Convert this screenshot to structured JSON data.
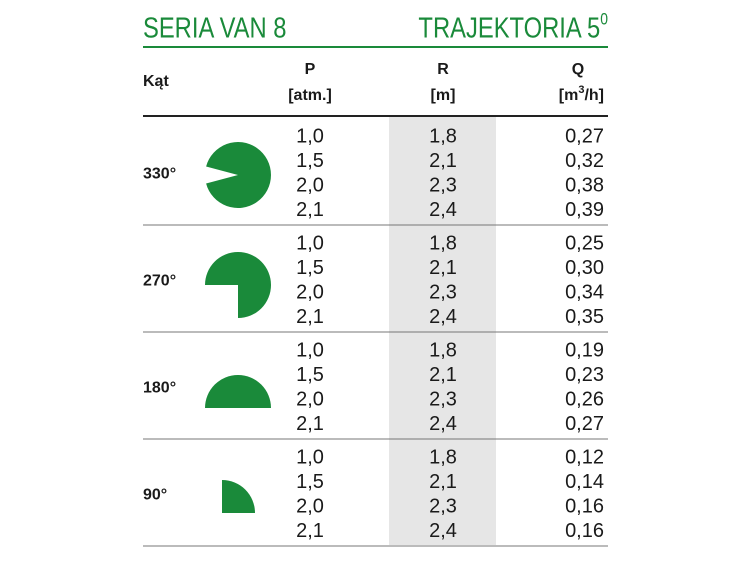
{
  "header": {
    "title_left": "SERIA VAN 8",
    "title_right": {
      "text": "TRAJEKTORIA 5",
      "sup": "0"
    }
  },
  "table": {
    "columns": [
      {
        "name": "Kąt"
      },
      {
        "name": "P",
        "unit": [
          "[atm.]"
        ]
      },
      {
        "name": "R",
        "unit": [
          "[m]"
        ]
      },
      {
        "name": "Q",
        "unit": [
          "[m",
          "3",
          "/h]"
        ]
      }
    ],
    "groups": [
      {
        "angle": "330°",
        "rows": [
          [
            "1,0",
            "1,8",
            "0,27"
          ],
          [
            "1,5",
            "2,1",
            "0,32"
          ],
          [
            "2,0",
            "2,3",
            "0,38"
          ],
          [
            "2,1",
            "2,4",
            "0,39"
          ]
        ]
      },
      {
        "angle": "270°",
        "rows": [
          [
            "1,0",
            "1,8",
            "0,25"
          ],
          [
            "1,5",
            "2,1",
            "0,30"
          ],
          [
            "2,0",
            "2,3",
            "0,34"
          ],
          [
            "2,1",
            "2,4",
            "0,35"
          ]
        ]
      },
      {
        "angle": "180°",
        "rows": [
          [
            "1,0",
            "1,8",
            "0,19"
          ],
          [
            "1,5",
            "2,1",
            "0,23"
          ],
          [
            "2,0",
            "2,3",
            "0,26"
          ],
          [
            "2,1",
            "2,4",
            "0,27"
          ]
        ]
      },
      {
        "angle": "90°",
        "rows": [
          [
            "1,0",
            "1,8",
            "0,12"
          ],
          [
            "1,5",
            "2,1",
            "0,14"
          ],
          [
            "2,0",
            "2,3",
            "0,16"
          ],
          [
            "2,1",
            "2,4",
            "0,16"
          ]
        ]
      }
    ]
  }
}
